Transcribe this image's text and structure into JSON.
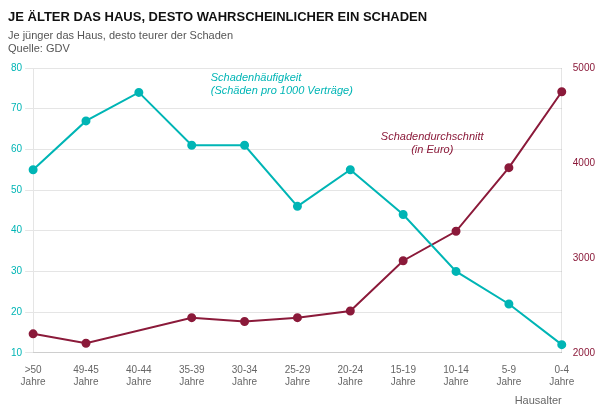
{
  "chart_data": {
    "type": "line",
    "title": "JE ÄLTER DAS HAUS, DESTO WAHRSCHEINLICHER EIN SCHADEN",
    "subtitle": [
      "Je jünger das Haus, desto teurer der Schaden",
      "Quelle: GDV"
    ],
    "xlabel": "Hausalter",
    "categories": [
      ">50\nJahre",
      "49-45\nJahre",
      "40-44\nJahre",
      "35-39\nJahre",
      "30-34\nJahre",
      "25-29\nJahre",
      "20-24\nJahre",
      "15-19\nJahre",
      "10-14\nJahre",
      "5-9\nJahre",
      "0-4\nJahre"
    ],
    "series": [
      {
        "name": "Schadenhäufigkeit\n(Schäden pro 1000 Verträge)",
        "color": "#00B5B5",
        "marker": "circle",
        "values": [
          55,
          67,
          74,
          61,
          61,
          46,
          55,
          44,
          30,
          22,
          12
        ]
      },
      {
        "name": "Schadendurchschnitt\n(in Euro)",
        "color": "#8B1A3A",
        "marker": "circle",
        "axis": "y2",
        "values": [
          2200,
          2100,
          null,
          2370,
          2330,
          2370,
          2440,
          2970,
          3280,
          3950,
          4750
        ]
      }
    ],
    "ylim": [
      10,
      80
    ],
    "yticks": [
      10,
      20,
      30,
      40,
      50,
      60,
      70,
      80
    ],
    "y2lim": [
      2000,
      5000
    ],
    "y2ticks": [
      2000,
      3000,
      4000,
      5000
    ],
    "grid": true
  }
}
